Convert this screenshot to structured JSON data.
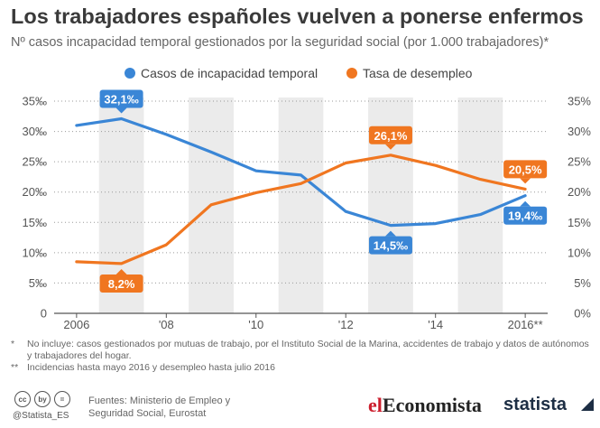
{
  "header": {
    "title": "Los trabajadores españoles vuelven a ponerse enfermos",
    "subtitle": "Nº casos incapacidad temporal gestionados por la seguridad social (por 1.000 trabajadores)*"
  },
  "chart_data": {
    "type": "line",
    "x": [
      2006,
      2007,
      2008,
      2009,
      2010,
      2011,
      2012,
      2013,
      2014,
      2015,
      2016
    ],
    "x_tick_labels": [
      "2006",
      "'08",
      "'10",
      "'12",
      "'14",
      "2016**"
    ],
    "x_tick_values": [
      2006,
      2008,
      2010,
      2012,
      2014,
      2016
    ],
    "series": [
      {
        "name": "Casos de incapacidad temporal",
        "color": "#3a86d6",
        "axis": "left",
        "values": [
          31.0,
          32.1,
          29.5,
          26.6,
          23.5,
          22.8,
          16.8,
          14.5,
          14.8,
          16.3,
          19.4
        ]
      },
      {
        "name": "Tasa de desempleo",
        "color": "#f07620",
        "axis": "right",
        "values": [
          8.5,
          8.2,
          11.3,
          17.9,
          19.9,
          21.4,
          24.8,
          26.1,
          24.4,
          22.1,
          20.5
        ]
      }
    ],
    "data_labels": [
      {
        "series": 0,
        "index": 1,
        "text": "32,1‰",
        "position": "above"
      },
      {
        "series": 0,
        "index": 7,
        "text": "14,5‰",
        "position": "below"
      },
      {
        "series": 0,
        "index": 10,
        "text": "19,4‰",
        "position": "below"
      },
      {
        "series": 1,
        "index": 1,
        "text": "8,2%",
        "position": "below"
      },
      {
        "series": 1,
        "index": 7,
        "text": "26,1%",
        "position": "above"
      },
      {
        "series": 1,
        "index": 10,
        "text": "20,5%",
        "position": "above"
      }
    ],
    "y_left": {
      "ylim": [
        0,
        35
      ],
      "ticks": [
        0,
        5,
        10,
        15,
        20,
        25,
        30,
        35
      ],
      "tick_labels": [
        "0",
        "5‰",
        "10‰",
        "15‰",
        "20‰",
        "25‰",
        "30‰",
        "35‰"
      ]
    },
    "y_right": {
      "ylim": [
        0,
        35
      ],
      "ticks": [
        0,
        5,
        10,
        15,
        20,
        25,
        30,
        35
      ],
      "tick_labels": [
        "0%",
        "5%",
        "10%",
        "15%",
        "20%",
        "25%",
        "30%",
        "35%"
      ]
    },
    "background_bands": "alternating grey column per year",
    "grid": "horizontal dotted",
    "legend_position": "top-center"
  },
  "footnotes": [
    {
      "mark": "*",
      "text": "No incluye: casos gestionados por mutuas de trabajo, por el Instituto Social de la Marina, accidentes de trabajo y datos de autónomos y trabajadores del hogar."
    },
    {
      "mark": "**",
      "text": "Incidencias hasta mayo 2016 y desempleo hasta julio 2016"
    }
  ],
  "footer": {
    "cc_icons": [
      "cc",
      "by",
      "="
    ],
    "handle": "@Statista_ES",
    "sources": [
      "Fuentes: Ministerio de Empleo y",
      "Seguridad Social, Eurostat"
    ],
    "brand_el": "el",
    "brand_main": "Economista",
    "statista": "statista"
  }
}
